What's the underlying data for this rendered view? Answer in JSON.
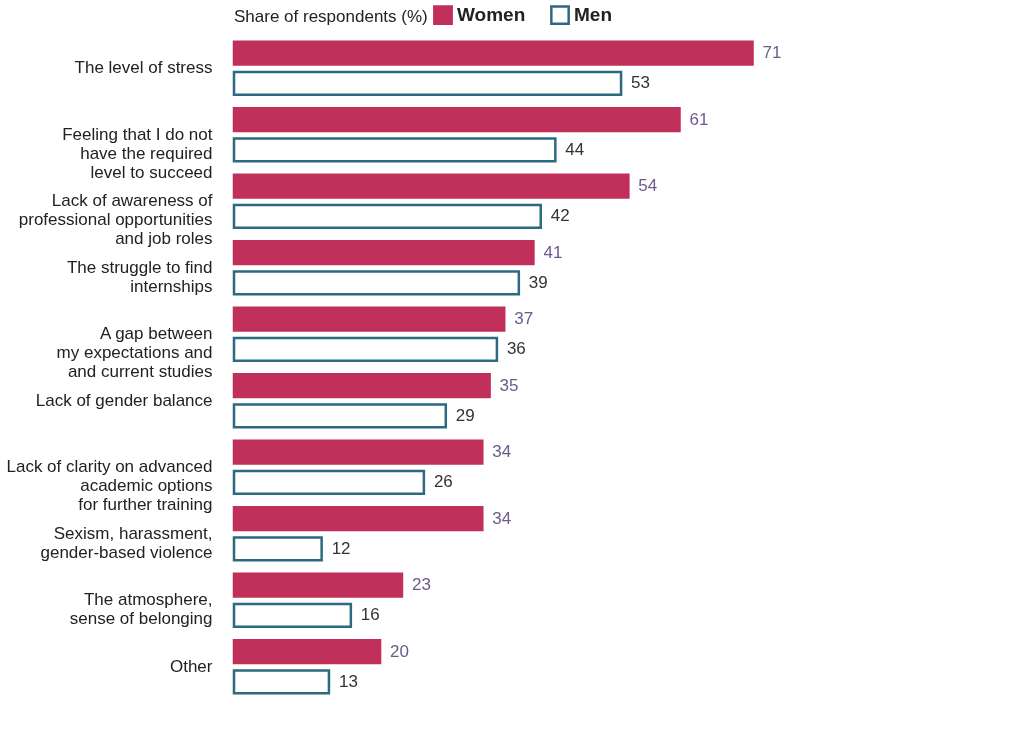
{
  "chart_data": {
    "type": "bar",
    "orientation": "horizontal",
    "legend_title": "Share of respondents (%)",
    "legend": "top",
    "data_labels": true,
    "tick_labels": "y",
    "categories": [
      "The level of stress",
      "Feeling that I do not\nhave the required\nlevel to succeed",
      "Lack of awareness of\nprofessional opportunities\nand job roles",
      "The struggle to find\ninternships",
      "A gap between\nmy expectations and\nand current studies",
      "Lack of gender balance",
      "Lack of clarity on advanced\nacademic options\nfor further training",
      "Sexism, harassment,\ngender-based violence",
      "The atmosphere,\nsense of belonging",
      "Other"
    ],
    "series": [
      {
        "name": "Women",
        "color": "#c0305a",
        "values": [
          71,
          61,
          54,
          41,
          37,
          35,
          34,
          34,
          23,
          20
        ]
      },
      {
        "name": "Men",
        "color": "#2b6a80",
        "values": [
          53,
          44,
          42,
          39,
          36,
          29,
          26,
          12,
          16,
          13
        ]
      }
    ]
  }
}
